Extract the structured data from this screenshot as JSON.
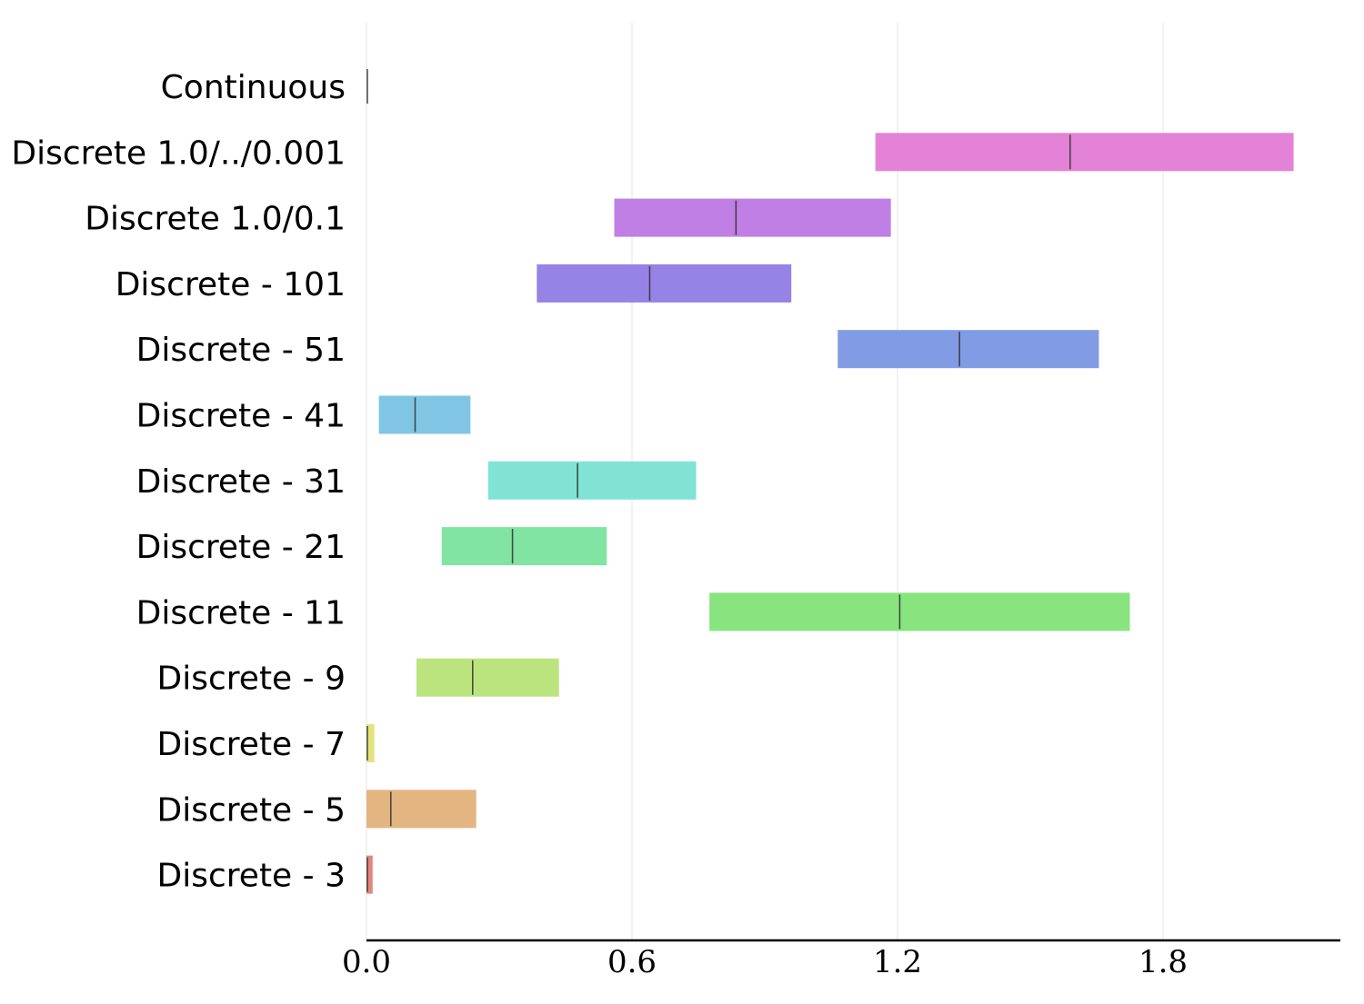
{
  "chart_data": {
    "type": "bar",
    "subtype": "horizontal-range",
    "title": "",
    "xlabel": "",
    "ylabel": "",
    "xlim": [
      0.0,
      2.2
    ],
    "xticks": [
      0.0,
      0.6,
      1.2,
      1.8
    ],
    "xtick_labels": [
      "0.0",
      "0.6",
      "1.2",
      "1.8"
    ],
    "grid": "vertical",
    "categories": [
      "Continuous",
      "Discrete 1.0/../0.001",
      "Discrete 1.0/0.1",
      "Discrete - 101",
      "Discrete - 51",
      "Discrete - 41",
      "Discrete - 31",
      "Discrete - 21",
      "Discrete - 11",
      "Discrete - 9",
      "Discrete - 7",
      "Discrete - 5",
      "Discrete - 3"
    ],
    "series": [
      {
        "name": "Continuous",
        "low": 0.0,
        "high": 0.0,
        "median": 0.0,
        "color": "#808080"
      },
      {
        "name": "Discrete 1.0/../0.001",
        "low": 1.15,
        "high": 2.095,
        "median": 1.59,
        "color": "#e382d7"
      },
      {
        "name": "Discrete 1.0/0.1",
        "low": 0.56,
        "high": 1.185,
        "median": 0.835,
        "color": "#c07fe4"
      },
      {
        "name": "Discrete - 101",
        "low": 0.385,
        "high": 0.96,
        "median": 0.64,
        "color": "#9683e6"
      },
      {
        "name": "Discrete - 51",
        "low": 1.065,
        "high": 1.655,
        "median": 1.34,
        "color": "#819be4"
      },
      {
        "name": "Discrete - 41",
        "low": 0.028,
        "high": 0.235,
        "median": 0.11,
        "color": "#81c5e4"
      },
      {
        "name": "Discrete - 31",
        "low": 0.275,
        "high": 0.745,
        "median": 0.477,
        "color": "#81e3d4"
      },
      {
        "name": "Discrete - 21",
        "low": 0.17,
        "high": 0.543,
        "median": 0.33,
        "color": "#81e4a2"
      },
      {
        "name": "Discrete - 11",
        "low": 0.775,
        "high": 1.725,
        "median": 1.205,
        "color": "#88e47f"
      },
      {
        "name": "Discrete - 9",
        "low": 0.113,
        "high": 0.435,
        "median": 0.24,
        "color": "#bbe47f"
      },
      {
        "name": "Discrete - 7",
        "low": 0.0,
        "high": 0.018,
        "median": 0.0,
        "color": "#e3e47f"
      },
      {
        "name": "Discrete - 5",
        "low": 0.0,
        "high": 0.248,
        "median": 0.055,
        "color": "#e3b581"
      },
      {
        "name": "Discrete - 3",
        "low": 0.0,
        "high": 0.014,
        "median": 0.0,
        "color": "#e3867f"
      }
    ]
  }
}
